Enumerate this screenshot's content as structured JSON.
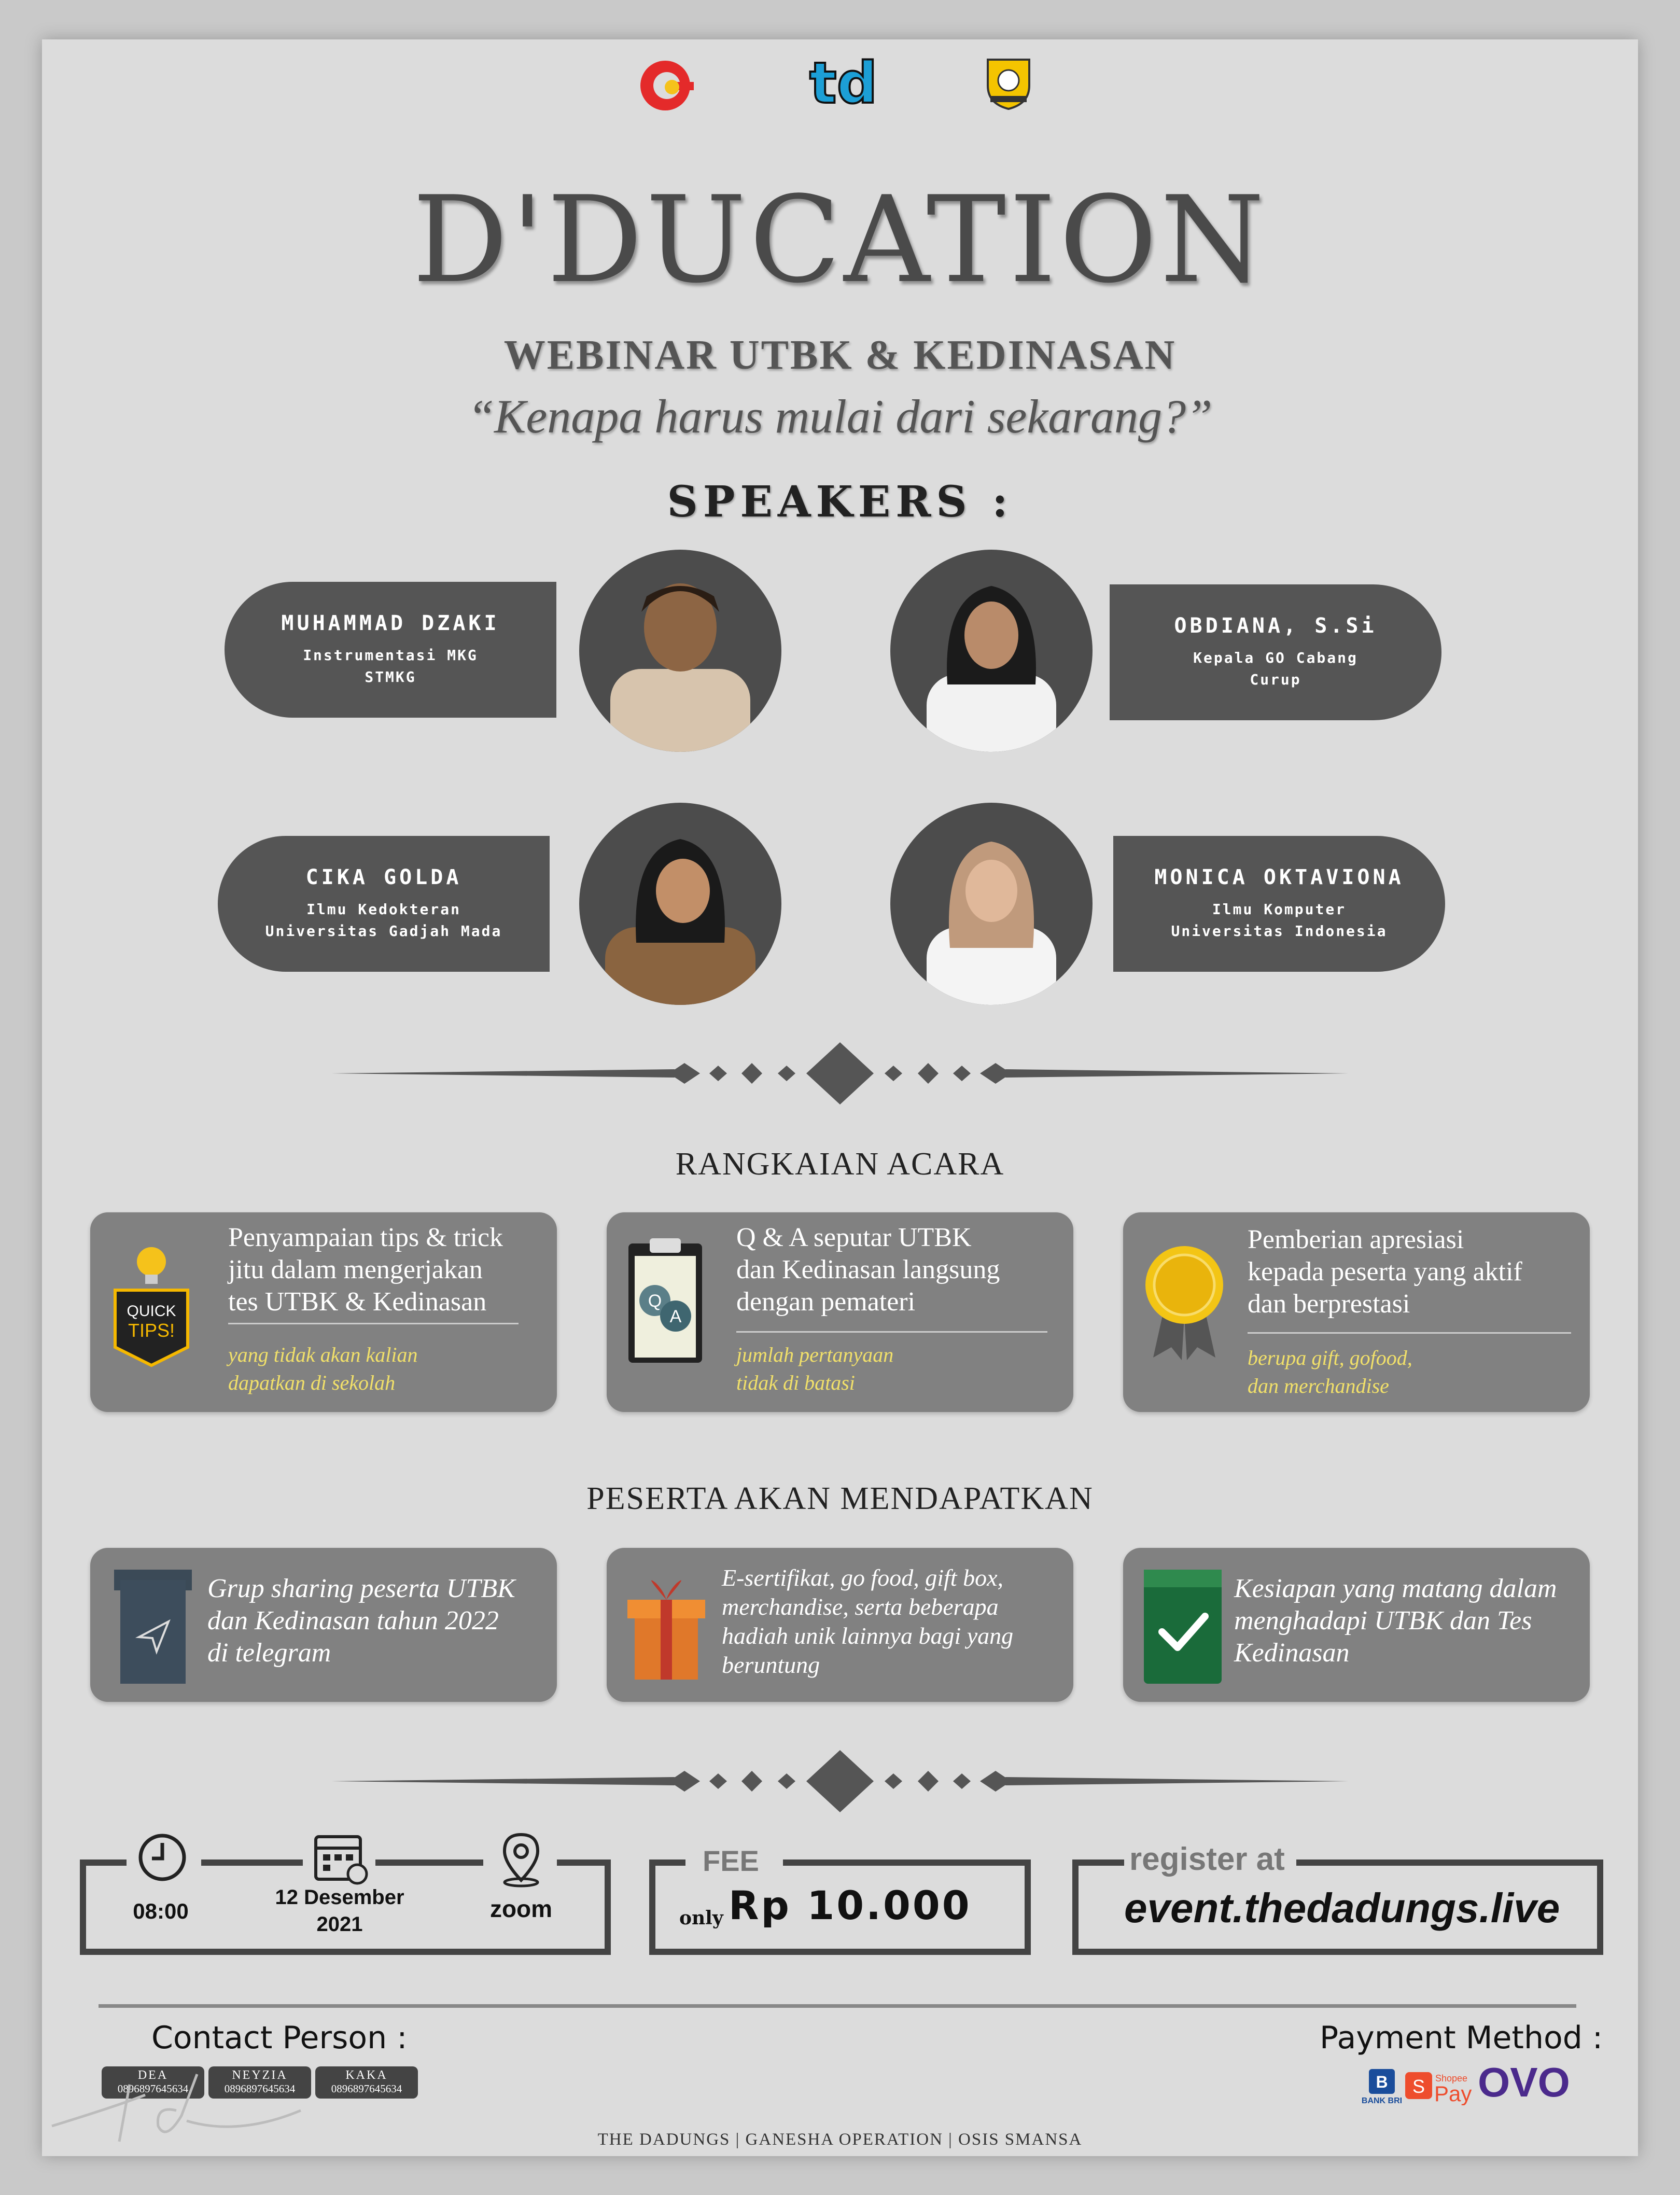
{
  "logos": {
    "td": "td"
  },
  "header": {
    "title": "D'DUCATION",
    "subtitle": "WEBINAR UTBK & KEDINASAN",
    "tagline": "“Kenapa harus mulai dari sekarang?”"
  },
  "speakers": {
    "heading": "SPEAKERS :",
    "list": [
      {
        "name": "MUHAMMAD DZAKI",
        "line1": "Instrumentasi MKG",
        "line2": "STMKG"
      },
      {
        "name": "OBDIANA, S.Si",
        "line1": "Kepala GO Cabang",
        "line2": "Curup"
      },
      {
        "name": "CIKA GOLDA",
        "line1": "Ilmu Kedokteran",
        "line2": "Universitas Gadjah Mada"
      },
      {
        "name": "MONICA OKTAVIONA",
        "line1": "Ilmu Komputer",
        "line2": "Universitas Indonesia"
      }
    ]
  },
  "agenda": {
    "heading": "RANGKAIAN ACARA",
    "cards": [
      {
        "badge1": "QUICK",
        "badge2": "TIPS!",
        "l1": "Penyampaian tips & trick",
        "l2": "jitu dalam mengerjakan",
        "l3": "tes UTBK & Kedinasan",
        "n1": "yang tidak akan kalian",
        "n2": "dapatkan di sekolah"
      },
      {
        "q": "Q",
        "a": "A",
        "l1": "Q & A seputar UTBK",
        "l2": "dan Kedinasan langsung",
        "l3": "dengan pemateri",
        "n1": "jumlah pertanyaan",
        "n2": "tidak di batasi"
      },
      {
        "l1": "Pemberian apresiasi",
        "l2": "kepada peserta yang aktif",
        "l3": "dan berprestasi",
        "n1": "berupa gift, gofood,",
        "n2": "dan merchandise"
      }
    ]
  },
  "benefits": {
    "heading": "PESERTA AKAN MENDAPATKAN",
    "cards": [
      {
        "l1": "Grup sharing peserta UTBK",
        "l2": "dan Kedinasan tahun 2022",
        "l3": "di telegram"
      },
      {
        "l1": "E-sertifikat, go food, gift box,",
        "l2": "merchandise, serta beberapa",
        "l3": "hadiah unik lainnya bagi yang",
        "l4": "beruntung"
      },
      {
        "l1": "Kesiapan yang matang dalam",
        "l2": "menghadapi UTBK dan Tes",
        "l3": "Kedinasan"
      }
    ]
  },
  "schedule": {
    "time": "08:00",
    "date_line1": "12 Desember",
    "date_line2": "2021",
    "platform": "zoom"
  },
  "fee": {
    "label": "FEE",
    "prefix": "only",
    "amount": "Rp 10.000"
  },
  "register": {
    "label": "register at",
    "url": "event.thedadungs.live"
  },
  "contact": {
    "heading": "Contact Person :",
    "people": [
      {
        "name": "DEA",
        "phone": "0896897645634"
      },
      {
        "name": "NEYZIA",
        "phone": "0896897645634"
      },
      {
        "name": "KAKA",
        "phone": "0896897645634"
      }
    ]
  },
  "payment": {
    "heading": "Payment Method :",
    "methods": {
      "0": "BANK BRI",
      "1a": "Shopee",
      "1b": "Pay",
      "2": "OVO"
    }
  },
  "footer": {
    "organizers": "THE DADUNGS | GANESHA OPERATION | OSIS SMANSA"
  },
  "colors": {
    "background": "#dcdcdc",
    "card": "#818181",
    "pill": "#555555",
    "accent_yellow": "#f1e06a"
  }
}
